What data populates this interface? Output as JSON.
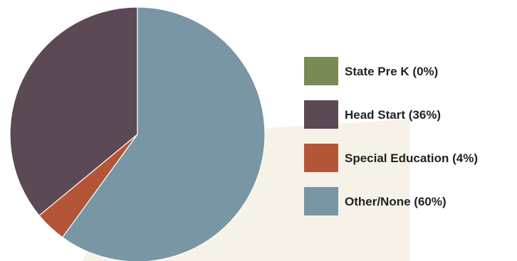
{
  "chart_data": {
    "type": "pie",
    "slices": [
      {
        "label": "State Pre K (0%)",
        "value": 0,
        "color": "#7a8a55"
      },
      {
        "label": "Head Start (36%)",
        "value": 36,
        "color": "#5b4a55"
      },
      {
        "label": "Special Education (4%)",
        "value": 4,
        "color": "#b45538"
      },
      {
        "label": "Other/None (60%)",
        "value": 60,
        "color": "#7896a4"
      }
    ],
    "legend_position": "right",
    "start_angle_deg": 0,
    "direction": "counterclockwise"
  },
  "colors": {
    "background_panel": "#f6f2e8",
    "slice_border": "#ffffff"
  }
}
